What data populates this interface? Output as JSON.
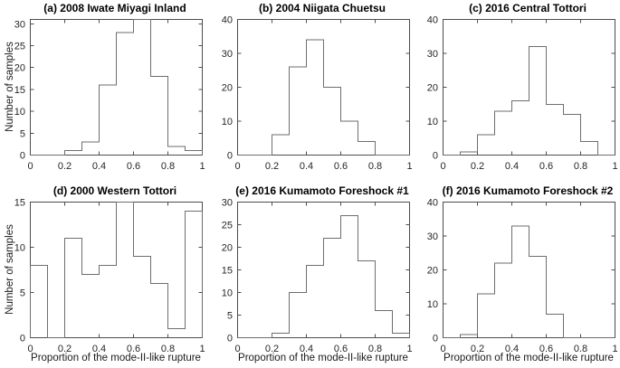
{
  "labels": {
    "xlabel": "Proportion of the mode-II-like rupture",
    "ylabel": "Number of samples"
  },
  "style": {
    "axis_color": "#4d4d4d",
    "line_color": "#6e6e6e",
    "text_color": "#262626",
    "background": "#ffffff"
  },
  "chart_data": [
    {
      "type": "bar",
      "subtype": "histogram-stairs",
      "panel": "a",
      "title": "(a) 2008 Iwate Miyagi Inland",
      "bin_edges": [
        0,
        0.1,
        0.2,
        0.3,
        0.4,
        0.5,
        0.6,
        0.7,
        0.8,
        0.9,
        1
      ],
      "counts": [
        0,
        0,
        1,
        3,
        16,
        28,
        31,
        18,
        2,
        1
      ],
      "xlim": [
        0,
        1
      ],
      "ylim": [
        0,
        31
      ],
      "xticks": [
        0,
        0.2,
        0.4,
        0.6,
        0.8,
        1
      ],
      "yticks": [
        0,
        5,
        10,
        15,
        20,
        25,
        30
      ],
      "xlabel": "",
      "ylabel": "Number of samples",
      "grid": false,
      "legend": null
    },
    {
      "type": "bar",
      "subtype": "histogram-stairs",
      "panel": "b",
      "title": "(b) 2004 Niigata Chuetsu",
      "bin_edges": [
        0,
        0.1,
        0.2,
        0.3,
        0.4,
        0.5,
        0.6,
        0.7,
        0.8,
        0.9,
        1
      ],
      "counts": [
        0,
        0,
        6,
        26,
        34,
        20,
        10,
        4,
        0,
        0
      ],
      "xlim": [
        0,
        1
      ],
      "ylim": [
        0,
        40
      ],
      "xticks": [
        0,
        0.2,
        0.4,
        0.6,
        0.8,
        1
      ],
      "yticks": [
        0,
        10,
        20,
        30,
        40
      ],
      "xlabel": "",
      "ylabel": "",
      "grid": false,
      "legend": null
    },
    {
      "type": "bar",
      "subtype": "histogram-stairs",
      "panel": "c",
      "title": "(c) 2016 Central Tottori",
      "bin_edges": [
        0,
        0.1,
        0.2,
        0.3,
        0.4,
        0.5,
        0.6,
        0.7,
        0.8,
        0.9,
        1
      ],
      "counts": [
        0,
        1,
        6,
        13,
        16,
        32,
        15,
        12,
        4,
        0
      ],
      "xlim": [
        0,
        1
      ],
      "ylim": [
        0,
        40
      ],
      "xticks": [
        0,
        0.2,
        0.4,
        0.6,
        0.8,
        1
      ],
      "yticks": [
        0,
        10,
        20,
        30,
        40
      ],
      "xlabel": "",
      "ylabel": "",
      "grid": false,
      "legend": null
    },
    {
      "type": "bar",
      "subtype": "histogram-stairs",
      "panel": "d",
      "title": "(d) 2000 Western Tottori",
      "bin_edges": [
        0,
        0.1,
        0.2,
        0.3,
        0.4,
        0.5,
        0.6,
        0.7,
        0.8,
        0.9,
        1
      ],
      "counts": [
        8,
        0,
        11,
        7,
        8,
        15,
        9,
        6,
        1,
        14
      ],
      "xlim": [
        0,
        1
      ],
      "ylim": [
        0,
        15
      ],
      "xticks": [
        0,
        0.2,
        0.4,
        0.6,
        0.8,
        1
      ],
      "yticks": [
        0,
        5,
        10,
        15
      ],
      "xlabel": "Proportion of the mode-II-like rupture",
      "ylabel": "Number of samples",
      "grid": false,
      "legend": null
    },
    {
      "type": "bar",
      "subtype": "histogram-stairs",
      "panel": "e",
      "title": "(e) 2016 Kumamoto Foreshock #1",
      "bin_edges": [
        0,
        0.1,
        0.2,
        0.3,
        0.4,
        0.5,
        0.6,
        0.7,
        0.8,
        0.9,
        1
      ],
      "counts": [
        0,
        0,
        1,
        10,
        16,
        22,
        27,
        17,
        6,
        1
      ],
      "xlim": [
        0,
        1
      ],
      "ylim": [
        0,
        30
      ],
      "xticks": [
        0,
        0.2,
        0.4,
        0.6,
        0.8,
        1
      ],
      "yticks": [
        0,
        5,
        10,
        15,
        20,
        25,
        30
      ],
      "xlabel": "Proportion of the mode-II-like rupture",
      "ylabel": "",
      "grid": false,
      "legend": null
    },
    {
      "type": "bar",
      "subtype": "histogram-stairs",
      "panel": "f",
      "title": "(f) 2016 Kumamoto Foreshock #2",
      "bin_edges": [
        0,
        0.1,
        0.2,
        0.3,
        0.4,
        0.5,
        0.6,
        0.7,
        0.8,
        0.9,
        1
      ],
      "counts": [
        0,
        1,
        13,
        22,
        33,
        24,
        7,
        0,
        0,
        0
      ],
      "xlim": [
        0,
        1
      ],
      "ylim": [
        0,
        40
      ],
      "xticks": [
        0,
        0.2,
        0.4,
        0.6,
        0.8,
        1
      ],
      "yticks": [
        0,
        10,
        20,
        30,
        40
      ],
      "xlabel": "Proportion of the mode-II-like rupture",
      "ylabel": "",
      "grid": false,
      "legend": null
    }
  ]
}
